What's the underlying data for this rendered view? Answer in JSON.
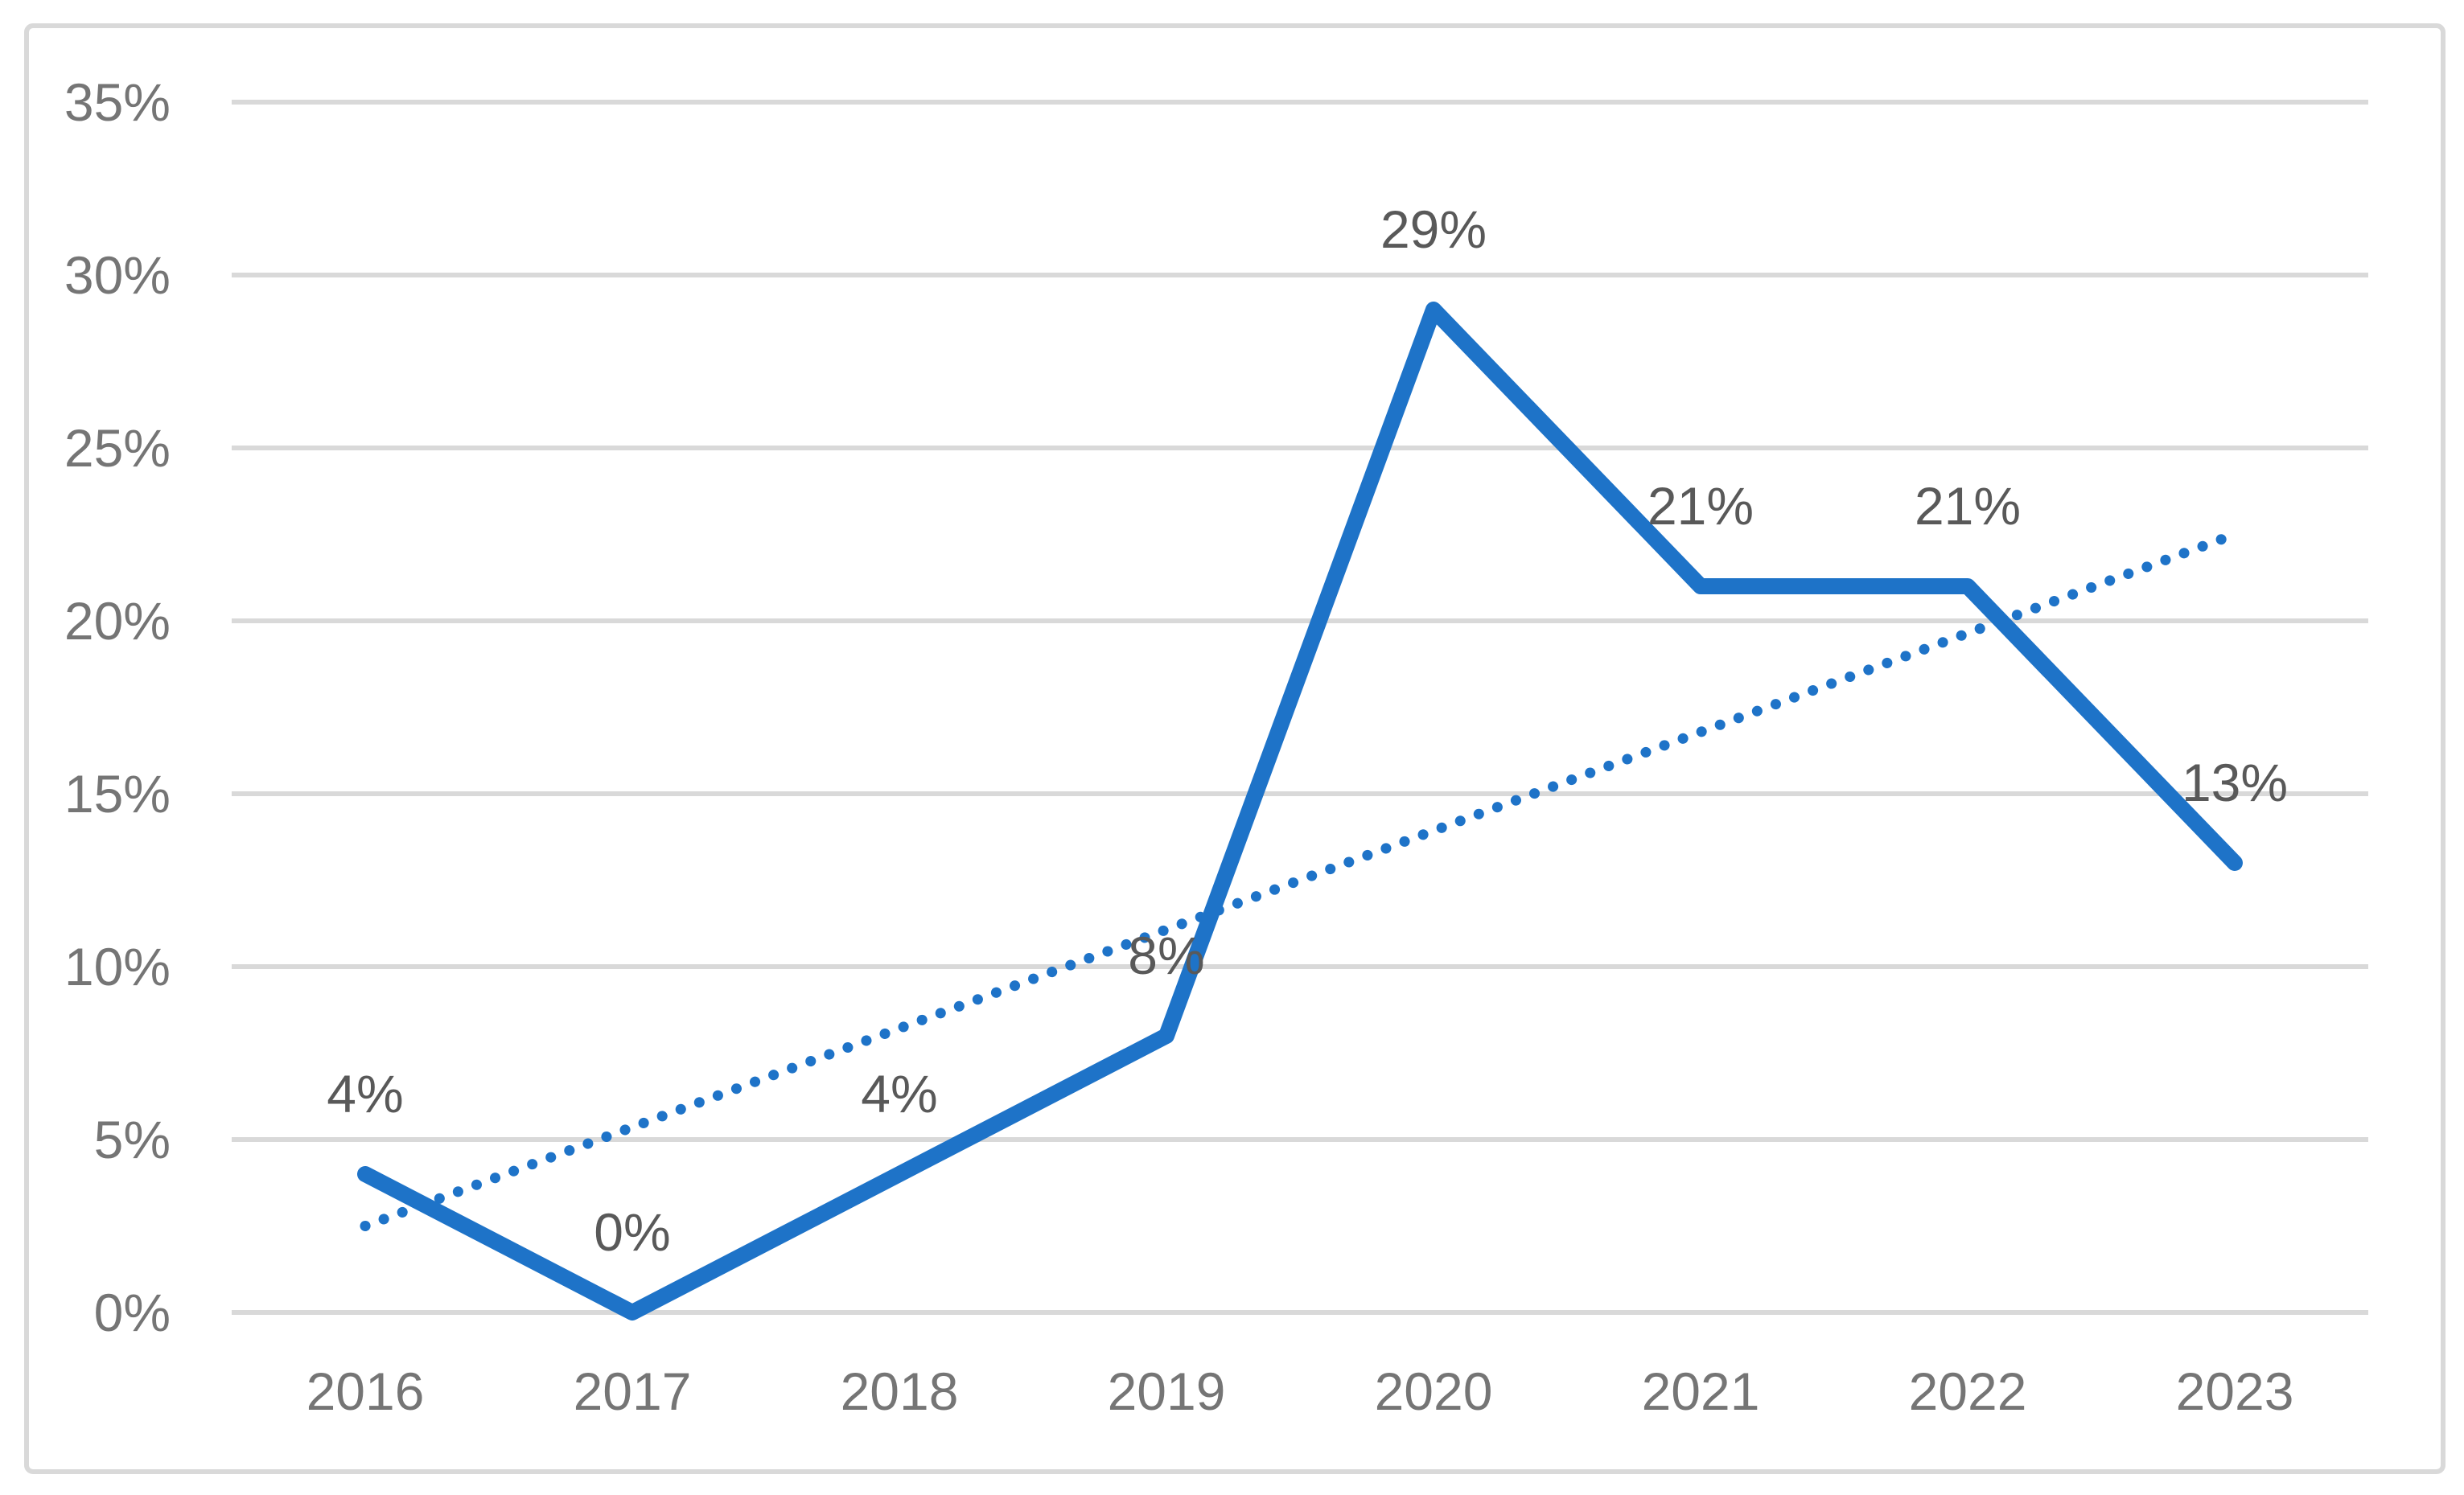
{
  "chart_data": {
    "type": "line",
    "title": "",
    "xlabel": "",
    "ylabel": "",
    "categories": [
      "2016",
      "2017",
      "2018",
      "2019",
      "2020",
      "2021",
      "2022",
      "2023"
    ],
    "series": [
      {
        "name": "percent-by-year",
        "style": "solid",
        "values": [
          4,
          0,
          4,
          8,
          29,
          21,
          21,
          13
        ],
        "data_labels": [
          "4%",
          "0%",
          "4%",
          "8%",
          "29%",
          "21%",
          "21%",
          "13%"
        ]
      },
      {
        "name": "linear-trendline",
        "style": "dotted",
        "trend_start_value": 2.5,
        "trend_end_value": 22.5
      }
    ],
    "ylim": [
      0,
      35
    ],
    "ytick_step": 5,
    "ytick_labels": [
      "0%",
      "5%",
      "10%",
      "15%",
      "20%",
      "25%",
      "30%",
      "35%"
    ],
    "grid": "horizontal-only",
    "legend_position": "none",
    "colors": {
      "series_line": "#1E73C8",
      "trendline": "#1E73C8",
      "gridline": "#D9D9D9",
      "frame_border": "#D9D9D9",
      "axis_text": "#757575",
      "data_label_text": "#595959",
      "background": "#FFFFFF"
    }
  }
}
